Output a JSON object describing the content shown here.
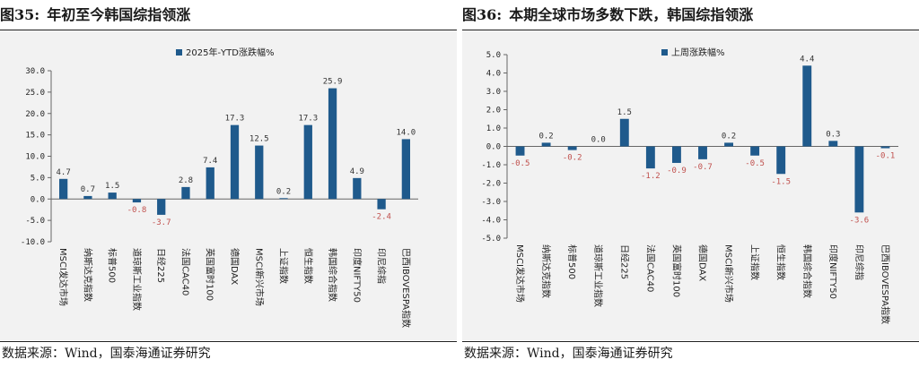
{
  "left": {
    "figure_number": "图35:",
    "figure_title": "年初至今韩国综指领涨",
    "source": "数据来源：Wind，国泰海通证券研究"
  },
  "right": {
    "figure_number": "图36:",
    "figure_title": "本期全球市场多数下跌，韩国综指领涨",
    "source": "数据来源：Wind，国泰海通证券研究"
  },
  "colors": {
    "bar": "#1f5a8c",
    "positive_label": "#333333",
    "negative_label": "#c0504d",
    "axis": "#666666"
  },
  "chart_data": [
    {
      "type": "bar",
      "title": "",
      "legend": "2025年-YTD涨跌幅%",
      "legend_position": "top-center",
      "grid": false,
      "ylim": [
        -10.0,
        30.0
      ],
      "yticks": [
        "30.0",
        "25.0",
        "20.0",
        "15.0",
        "10.0",
        "5.0",
        "0.0",
        "-5.0",
        "-10.0"
      ],
      "categories": [
        "MSCI发达市场",
        "纳斯达克指数",
        "标普500",
        "道琼斯工业指数",
        "日经225",
        "法国CAC40",
        "英国富时100",
        "德国DAX",
        "MSCI新兴市场",
        "上证指数",
        "恒生指数",
        "韩国综合指数",
        "印度NIFTY50",
        "印尼综指",
        "巴西IBOVESPA指数"
      ],
      "values": [
        4.7,
        0.7,
        1.5,
        -0.8,
        -3.7,
        2.8,
        7.4,
        17.3,
        12.5,
        0.2,
        17.3,
        25.9,
        4.9,
        -2.4,
        14.0
      ],
      "value_labels": [
        "4.7",
        "0.7",
        "1.5",
        "-0.8",
        "-3.7",
        "2.8",
        "7.4",
        "17.3",
        "12.5",
        "0.2",
        "17.3",
        "25.9",
        "4.9",
        "-2.4",
        "14.0"
      ]
    },
    {
      "type": "bar",
      "title": "",
      "legend": "上周涨跌幅%",
      "legend_position": "top-left",
      "grid": false,
      "ylim": [
        -5.0,
        5.0
      ],
      "yticks": [
        "5.0",
        "4.0",
        "3.0",
        "2.0",
        "1.0",
        "0.0",
        "-1.0",
        "-2.0",
        "-3.0",
        "-4.0",
        "-5.0"
      ],
      "categories": [
        "MSCI发达市场",
        "纳斯达克指数",
        "标普500",
        "道琼斯工业指数",
        "日经225",
        "法国CAC40",
        "英国富时100",
        "德国DAX",
        "MSCI新兴市场",
        "上证指数",
        "恒生指数",
        "韩国综合指数",
        "印度NIFTY50",
        "印尼综指",
        "巴西IBOVESPA指数"
      ],
      "values": [
        -0.5,
        0.2,
        -0.2,
        0.0,
        1.5,
        -1.2,
        -0.9,
        -0.7,
        0.2,
        -0.5,
        -1.5,
        4.4,
        0.3,
        -3.6,
        -0.1
      ],
      "value_labels": [
        "-0.5",
        "0.2",
        "-0.2",
        "0.0",
        "1.5",
        "-1.2",
        "-0.9",
        "-0.7",
        "0.2",
        "-0.5",
        "-1.5",
        "4.4",
        "0.3",
        "-3.6",
        "-0.1"
      ]
    }
  ]
}
